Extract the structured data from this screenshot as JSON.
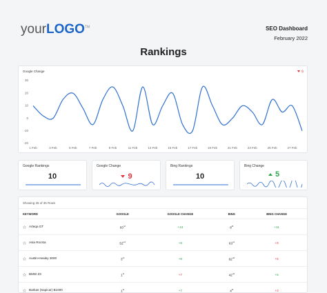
{
  "header": {
    "logo_light": "your",
    "logo_bold": "LOGO",
    "logo_mark": "TM",
    "title": "SEO Dashboard",
    "date": "February 2022"
  },
  "page_title": "Rankings",
  "main_chart": {
    "type": "line",
    "title": "Google Change",
    "badge_value": 9,
    "badge_color": "#e0333b",
    "categories": [
      "1 Feb",
      null,
      "3 Feb",
      null,
      "5 Feb",
      null,
      "7 Feb",
      null,
      "9 Feb",
      null,
      "11 Feb",
      null,
      "13 Feb",
      null,
      "15 Feb",
      null,
      "17 Feb",
      null,
      "19 Feb",
      null,
      "21 Feb",
      null,
      "23 Feb",
      null,
      "25 Feb",
      null,
      "27 Feb",
      null
    ],
    "values": [
      10,
      2,
      0,
      15,
      20,
      8,
      -5,
      15,
      25,
      10,
      -10,
      25,
      -5,
      10,
      20,
      -5,
      -10,
      25,
      10,
      -5,
      0,
      10,
      5,
      -5,
      15,
      5,
      10,
      -10
    ],
    "color": "#2f6fd0",
    "ylim": [
      -20,
      30
    ],
    "yticks": [
      30,
      20,
      10,
      0,
      -10,
      -20
    ],
    "grid": false
  },
  "kpis": [
    {
      "title": "Google Rankings",
      "value": 10
    },
    {
      "title": "Google Change",
      "value": 9,
      "color": "#e0333b"
    },
    {
      "title": "Bing Rankings",
      "value": 10
    },
    {
      "title": "Bing Change",
      "value": 5,
      "color": "#2ea44f"
    }
  ],
  "table": {
    "caption": "Showing 35 of 35 Rows",
    "columns": [
      "KEYWORD",
      "GOOGLE",
      "GOOGLE CHANGE",
      "BING",
      "BING CHANGE"
    ],
    "rows": [
      {
        "keyword": "Arteqa GT",
        "google": "63",
        "google_suffix": "rd",
        "google_change": "+13",
        "google_change_color": "#2ea44f",
        "bing": "8",
        "bing_suffix": "th",
        "bing_change": "+11",
        "bing_change_color": "#2ea44f"
      },
      {
        "keyword": "Asia Rocsta",
        "google": "52",
        "google_suffix": "nd",
        "google_change": "+8",
        "google_change_color": "#2ea44f",
        "bing": "63",
        "bing_suffix": "rd",
        "bing_change": "+9",
        "bing_change_color": "#e0333b"
      },
      {
        "keyword": "Austin-Healey 3000",
        "google": "3",
        "google_suffix": "rd",
        "google_change": "+8",
        "google_change_color": "#2ea44f",
        "bing": "62",
        "bing_suffix": "nd",
        "bing_change": "+6",
        "bing_change_color": "#e0333b"
      },
      {
        "keyword": "BMW Z3",
        "google": "1",
        "google_suffix": "st",
        "google_change": "+7",
        "google_change_color": "#e0333b",
        "bing": "42",
        "bing_suffix": "nd",
        "bing_change": "+5",
        "bing_change_color": "#2ea44f"
      },
      {
        "keyword": "Barkas (Sapicar) B1000",
        "google": "1",
        "google_suffix": "st",
        "google_change": "+7",
        "google_change_color": "#2ea44f",
        "bing": "4",
        "bing_suffix": "th",
        "bing_change": "+3",
        "bing_change_color": "#e0333b"
      }
    ]
  }
}
